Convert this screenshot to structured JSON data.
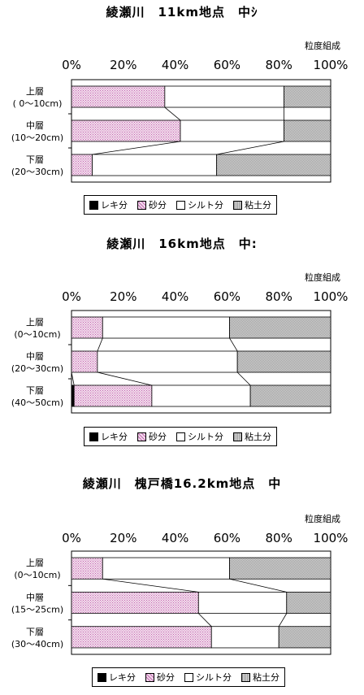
{
  "legend": {
    "gravel": "レキ分",
    "sand": "砂分",
    "silt": "シルト分",
    "clay": "粘土分"
  },
  "colors": {
    "sand_dot": "#c06ab0",
    "sand_bg": "#f3dbec",
    "clay_dot": "#9a9a9a",
    "clay_bg": "#d9d9d9"
  },
  "chart_data": [
    {
      "type": "bar",
      "orientation": "horizontal-stacked-100",
      "title": "綾瀬川　11km地点　中ｼ",
      "unit_label": "粒度組成",
      "xlim": [
        0,
        100
      ],
      "x_ticks": [
        "0%",
        "20%",
        "40%",
        "60%",
        "80%",
        "100%"
      ],
      "categories": [
        {
          "line1": "上層",
          "line2": "( 0～10cm)"
        },
        {
          "line1": "中層",
          "line2": "(10～20cm)"
        },
        {
          "line1": "下層",
          "line2": "(20～30cm)"
        }
      ],
      "series": [
        {
          "name": "レキ分",
          "values": [
            0,
            0,
            0
          ]
        },
        {
          "name": "砂分",
          "values": [
            36,
            42,
            8
          ]
        },
        {
          "name": "シルト分",
          "values": [
            46,
            40,
            48
          ]
        },
        {
          "name": "粘土分",
          "values": [
            18,
            18,
            44
          ]
        }
      ]
    },
    {
      "type": "bar",
      "orientation": "horizontal-stacked-100",
      "title": "綾瀬川　16km地点　中:",
      "unit_label": "粒度組成",
      "xlim": [
        0,
        100
      ],
      "x_ticks": [
        "0%",
        "20%",
        "40%",
        "60%",
        "80%",
        "100%"
      ],
      "categories": [
        {
          "line1": "上層",
          "line2": "(0～10cm)"
        },
        {
          "line1": "中層",
          "line2": "(20～30cm)"
        },
        {
          "line1": "下層",
          "line2": "(40～50cm)"
        }
      ],
      "series": [
        {
          "name": "レキ分",
          "values": [
            0,
            0,
            1
          ]
        },
        {
          "name": "砂分",
          "values": [
            12,
            10,
            30
          ]
        },
        {
          "name": "シルト分",
          "values": [
            49,
            54,
            38
          ]
        },
        {
          "name": "粘土分",
          "values": [
            39,
            36,
            31
          ]
        }
      ]
    },
    {
      "type": "bar",
      "orientation": "horizontal-stacked-100",
      "title": "綾瀬川　槐戸橋16.2km地点　中",
      "unit_label": "粒度組成",
      "xlim": [
        0,
        100
      ],
      "x_ticks": [
        "0%",
        "20%",
        "40%",
        "60%",
        "80%",
        "100%"
      ],
      "categories": [
        {
          "line1": "上層",
          "line2": "(0～10cm)"
        },
        {
          "line1": "中層",
          "line2": "(15～25cm)"
        },
        {
          "line1": "下層",
          "line2": "(30～40cm)"
        }
      ],
      "series": [
        {
          "name": "レキ分",
          "values": [
            0,
            0,
            0
          ]
        },
        {
          "name": "砂分",
          "values": [
            12,
            49,
            54
          ]
        },
        {
          "name": "シルト分",
          "values": [
            49,
            34,
            26
          ]
        },
        {
          "name": "粘土分",
          "values": [
            39,
            17,
            20
          ]
        }
      ]
    }
  ]
}
